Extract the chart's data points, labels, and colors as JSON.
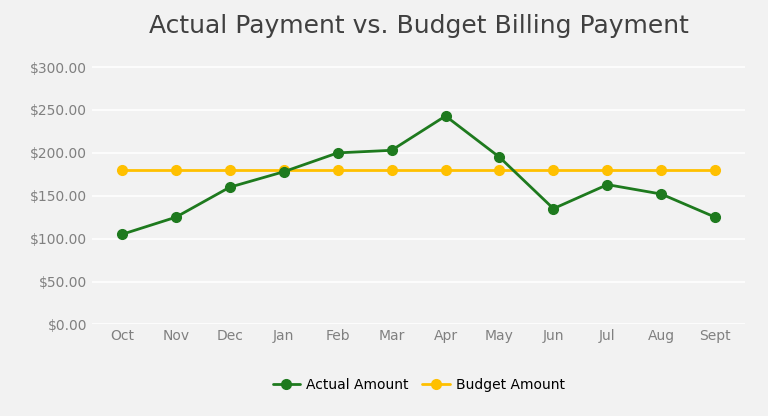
{
  "title": "Actual Payment vs. Budget Billing Payment",
  "months": [
    "Oct",
    "Nov",
    "Dec",
    "Jan",
    "Feb",
    "Mar",
    "Apr",
    "May",
    "Jun",
    "Jul",
    "Aug",
    "Sept"
  ],
  "actual": [
    105,
    125,
    160,
    178,
    200,
    203,
    243,
    195,
    135,
    163,
    152,
    125
  ],
  "budget": [
    180,
    180,
    180,
    180,
    180,
    180,
    180,
    180,
    180,
    180,
    180,
    180
  ],
  "actual_color": "#1E7A1E",
  "budget_color": "#FFC000",
  "ylim": [
    0,
    320
  ],
  "yticks": [
    0,
    50,
    100,
    150,
    200,
    250,
    300
  ],
  "legend_labels": [
    "Actual Amount",
    "Budget Amount"
  ],
  "background_color": "#F2F2F2",
  "plot_bg_color": "#F2F2F2",
  "grid_color": "#FFFFFF",
  "tick_color": "#808080",
  "title_fontsize": 18,
  "axis_fontsize": 10,
  "legend_fontsize": 10,
  "line_width": 2.0,
  "marker_size": 7
}
